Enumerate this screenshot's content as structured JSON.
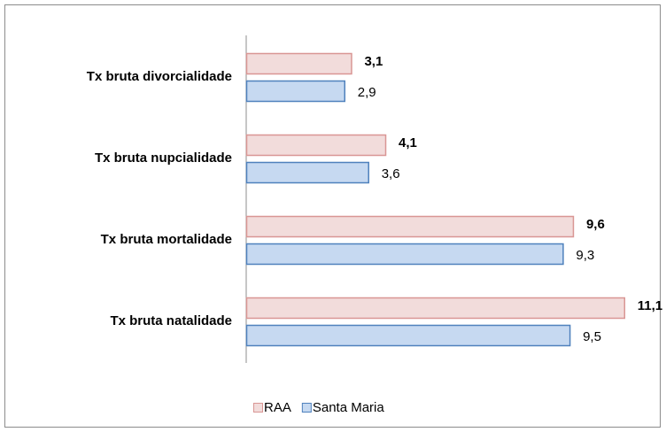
{
  "chart_data": {
    "type": "hbar",
    "categories": [
      "Tx bruta divorcialidade",
      "Tx bruta nupcialidade",
      "Tx bruta mortalidade",
      "Tx bruta natalidade"
    ],
    "series": [
      {
        "name": "RAA",
        "color": "#f2dcdb",
        "stroke": "#d99694",
        "bold": true,
        "values": [
          3.1,
          4.1,
          9.6,
          11.1
        ],
        "value_labels": [
          "3,1",
          "4,1",
          "9,6",
          "11,1"
        ]
      },
      {
        "name": "Santa Maria",
        "color": "#c6d9f1",
        "stroke": "#4f81bd",
        "bold": false,
        "values": [
          2.9,
          3.6,
          9.3,
          9.5
        ],
        "value_labels": [
          "2,9",
          "3,6",
          "9,3",
          "9,5"
        ]
      }
    ],
    "xlim": [
      0,
      12.3
    ],
    "legend": "bottom"
  }
}
